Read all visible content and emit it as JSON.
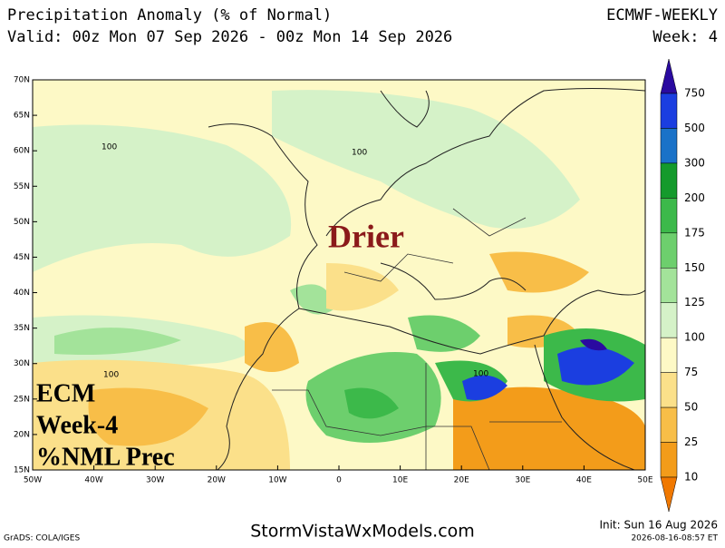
{
  "header": {
    "title": "Precipitation Anomaly (% of Normal)",
    "model": "ECMWF-WEEKLY",
    "valid": "Valid: 00z Mon 07 Sep 2026 - 00z Mon 14 Sep 2026",
    "week": "Week: 4"
  },
  "map": {
    "lat_labels": [
      "70N",
      "65N",
      "60N",
      "55N",
      "50N",
      "45N",
      "40N",
      "35N",
      "30N",
      "25N",
      "20N",
      "15N"
    ],
    "lon_labels": [
      "50W",
      "40W",
      "30W",
      "20W",
      "10W",
      "0",
      "10E",
      "20E",
      "30E",
      "40E",
      "50E"
    ],
    "contour_labels": [
      "100",
      "100",
      "100",
      "100"
    ],
    "annotation": "Drier",
    "overlay": [
      "ECM",
      "Week-4",
      "%NML Prec"
    ]
  },
  "colorbar": {
    "levels": [
      750,
      500,
      300,
      200,
      175,
      150,
      125,
      100,
      75,
      50,
      25,
      10
    ],
    "colors": [
      "#2a0aa0",
      "#1b3ee0",
      "#1a72c8",
      "#149a2c",
      "#3cb94a",
      "#6dcf6d",
      "#a3e39a",
      "#d5f2c8",
      "#fdf9c6",
      "#fbe08a",
      "#f8be48",
      "#f39c1a",
      "#f07800"
    ]
  },
  "footer": {
    "site": "StormVistaWxModels.com",
    "init": "Init: Sun 16 Aug 2026",
    "grads": "GrADS: COLA/IGES",
    "stamp": "2026-08-16-08:57 ET"
  }
}
